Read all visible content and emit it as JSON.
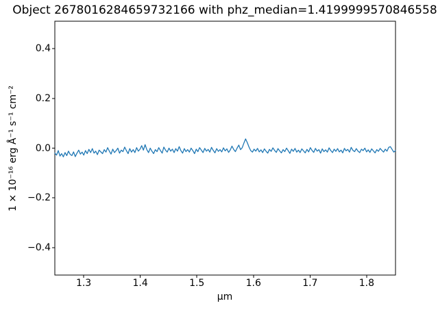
{
  "chart_data": {
    "type": "line",
    "title": "Object 2678016284659732166 with phz_median=1.4199999570846558",
    "xlabel": "μm",
    "ylabel": "1 × 10⁻¹⁶ erg Å⁻¹ s⁻¹ cm⁻²",
    "xlim": [
      1.249,
      1.851
    ],
    "ylim": [
      -0.51,
      0.51
    ],
    "x_ticks": [
      1.3,
      1.4,
      1.5,
      1.6,
      1.7,
      1.8
    ],
    "x_tick_labels": [
      "1.3",
      "1.4",
      "1.5",
      "1.6",
      "1.7",
      "1.8"
    ],
    "y_ticks": [
      0.4,
      0.2,
      0.0,
      -0.2,
      -0.4
    ],
    "y_tick_labels": [
      "0.4",
      "0.2",
      "0.0",
      "−0.2",
      "−0.4"
    ],
    "grid": false,
    "legend": null,
    "line_color": "#1f77b4",
    "axes_color": "#000000",
    "background_color": "#ffffff",
    "series": [
      {
        "name": "spectrum",
        "x_start": 1.249,
        "x_step": 0.00301,
        "y": [
          -0.02,
          -0.028,
          -0.01,
          -0.032,
          -0.022,
          -0.035,
          -0.018,
          -0.03,
          -0.012,
          -0.025,
          -0.03,
          -0.015,
          -0.034,
          -0.02,
          -0.008,
          -0.024,
          -0.016,
          -0.028,
          -0.01,
          -0.022,
          -0.005,
          -0.018,
          -0.002,
          -0.02,
          -0.012,
          -0.026,
          -0.008,
          -0.015,
          -0.022,
          -0.006,
          -0.016,
          0.002,
          -0.012,
          -0.024,
          -0.004,
          -0.018,
          -0.01,
          0.0,
          -0.02,
          -0.008,
          -0.014,
          0.004,
          -0.01,
          -0.022,
          -0.002,
          -0.016,
          -0.006,
          -0.018,
          0.002,
          -0.012,
          -0.004,
          0.01,
          -0.008,
          0.014,
          -0.006,
          -0.018,
          0.0,
          -0.012,
          -0.022,
          -0.006,
          -0.014,
          0.002,
          -0.01,
          -0.02,
          0.004,
          -0.008,
          -0.016,
          0.0,
          -0.012,
          -0.004,
          -0.018,
          -0.002,
          -0.012,
          0.006,
          -0.01,
          -0.02,
          -0.002,
          -0.014,
          -0.006,
          -0.016,
          0.0,
          -0.01,
          -0.022,
          -0.004,
          -0.014,
          0.002,
          -0.008,
          -0.018,
          -0.001,
          -0.012,
          -0.005,
          -0.016,
          0.003,
          -0.009,
          -0.019,
          -0.002,
          -0.013,
          -0.006,
          -0.015,
          0.001,
          -0.011,
          -0.003,
          -0.017,
          -0.007,
          0.008,
          -0.005,
          -0.014,
          0.0,
          0.012,
          -0.006,
          0.002,
          0.02,
          0.037,
          0.022,
          0.004,
          -0.01,
          -0.016,
          -0.004,
          -0.012,
          -0.001,
          -0.015,
          -0.007,
          -0.018,
          -0.003,
          -0.012,
          -0.02,
          -0.005,
          -0.013,
          0.001,
          -0.009,
          -0.017,
          -0.002,
          -0.011,
          -0.019,
          -0.006,
          -0.014,
          0.0,
          -0.01,
          -0.021,
          -0.004,
          -0.013,
          -0.001,
          -0.016,
          -0.008,
          -0.018,
          -0.003,
          -0.011,
          -0.019,
          -0.005,
          -0.015,
          0.002,
          -0.009,
          -0.017,
          -0.001,
          -0.012,
          -0.006,
          -0.02,
          -0.003,
          -0.014,
          -0.007,
          -0.016,
          0.001,
          -0.01,
          -0.018,
          -0.004,
          -0.013,
          -0.002,
          -0.015,
          -0.008,
          -0.019,
          -0.001,
          -0.011,
          -0.005,
          -0.016,
          0.003,
          -0.009,
          -0.014,
          -0.002,
          -0.012,
          -0.018,
          -0.004,
          -0.01,
          0.0,
          -0.015,
          -0.007,
          -0.017,
          -0.003,
          -0.011,
          -0.019,
          -0.006,
          -0.013,
          -0.001,
          -0.009,
          -0.016,
          -0.004,
          -0.012,
          0.003,
          0.006,
          -0.005,
          -0.016,
          -0.01
        ]
      }
    ]
  }
}
